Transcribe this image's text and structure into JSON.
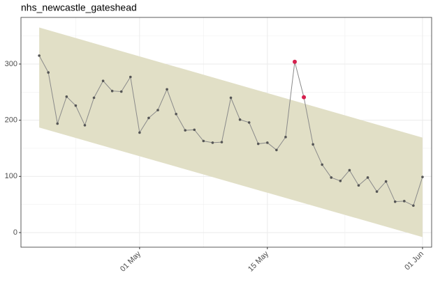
{
  "chart_data": {
    "type": "line",
    "title": "nhs_newcastle_gateshead",
    "x": [
      "20 Apr",
      "21 Apr",
      "22 Apr",
      "23 Apr",
      "24 Apr",
      "25 Apr",
      "26 Apr",
      "27 Apr",
      "28 Apr",
      "29 Apr",
      "30 Apr",
      "01 May",
      "02 May",
      "03 May",
      "04 May",
      "05 May",
      "06 May",
      "07 May",
      "08 May",
      "09 May",
      "10 May",
      "11 May",
      "12 May",
      "13 May",
      "14 May",
      "15 May",
      "16 May",
      "17 May",
      "18 May",
      "19 May",
      "20 May",
      "21 May",
      "22 May",
      "23 May",
      "24 May",
      "25 May",
      "26 May",
      "27 May",
      "28 May",
      "29 May",
      "30 May",
      "31 May",
      "01 Jun"
    ],
    "series": [
      {
        "color": "#8a8a8a",
        "values": [
          315,
          285,
          194,
          242,
          226,
          191,
          240,
          270,
          252,
          251,
          277,
          178,
          204,
          218,
          255,
          211,
          182,
          183,
          163,
          160,
          161,
          240,
          201,
          196,
          158,
          160,
          147,
          170,
          304,
          241,
          157,
          121,
          98,
          92,
          111,
          84,
          98,
          73,
          91,
          55,
          56,
          48,
          99
        ]
      }
    ],
    "highlight": {
      "color": "#d6204e",
      "x": [
        "18 May",
        "19 May"
      ],
      "values": [
        304,
        241
      ]
    },
    "band": {
      "color": "#e1dfc6",
      "x": [
        "20 Apr",
        "01 Jun"
      ],
      "upper": [
        365,
        169
      ],
      "lower": [
        187,
        -8
      ]
    },
    "xlim": [
      "18 Apr",
      "02 Jun"
    ],
    "xticks": [
      "01 May",
      "15 May",
      "01 Jun"
    ],
    "ylim": [
      -26,
      383
    ],
    "yticks": [
      0,
      100,
      200,
      300
    ],
    "grid": true
  }
}
